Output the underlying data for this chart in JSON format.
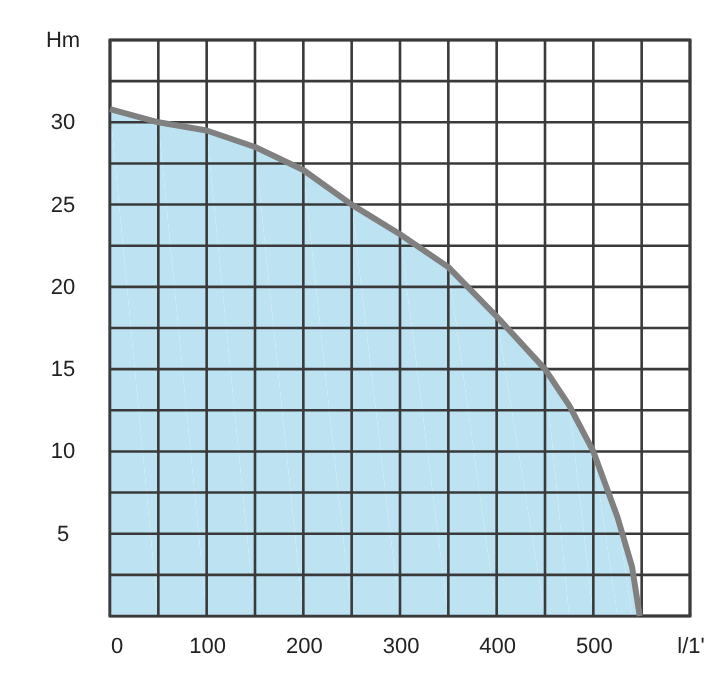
{
  "chart_data": {
    "type": "area",
    "xlabel": "l/1'",
    "ylabel": "Hm",
    "x": [
      0,
      50,
      100,
      150,
      200,
      250,
      300,
      350,
      400,
      450,
      475,
      500,
      525,
      540,
      548
    ],
    "series": [
      {
        "color": "#bde3f3",
        "values": [
          30.8,
          30.0,
          29.5,
          28.5,
          27.1,
          25.0,
          23.2,
          21.2,
          18.2,
          15.0,
          12.8,
          10.0,
          6.0,
          3.0,
          0
        ]
      }
    ],
    "xlim": [
      0,
      600
    ],
    "ylim": [
      0,
      35
    ],
    "xticks": [
      0,
      {
        "value": 50,
        "label": null
      },
      100,
      {
        "value": 150,
        "label": null
      },
      200,
      {
        "value": 250,
        "label": null
      },
      300,
      {
        "value": 350,
        "label": null
      },
      400,
      {
        "value": 450,
        "label": null
      },
      500,
      {
        "value": 550,
        "label": null
      },
      {
        "value": 600,
        "label": null
      }
    ],
    "yticks": [
      {
        "value": 0,
        "label": null
      },
      {
        "value": 2.5,
        "label": null
      },
      5,
      {
        "value": 7.5,
        "label": null
      },
      10,
      {
        "value": 12.5,
        "label": null
      },
      15,
      {
        "value": 17.5,
        "label": null
      },
      20,
      {
        "value": 22.5,
        "label": null
      },
      25,
      {
        "value": 27.5,
        "label": null
      },
      30,
      {
        "value": 32.5,
        "label": null
      },
      {
        "value": 35,
        "label": null
      }
    ],
    "grid": true
  }
}
